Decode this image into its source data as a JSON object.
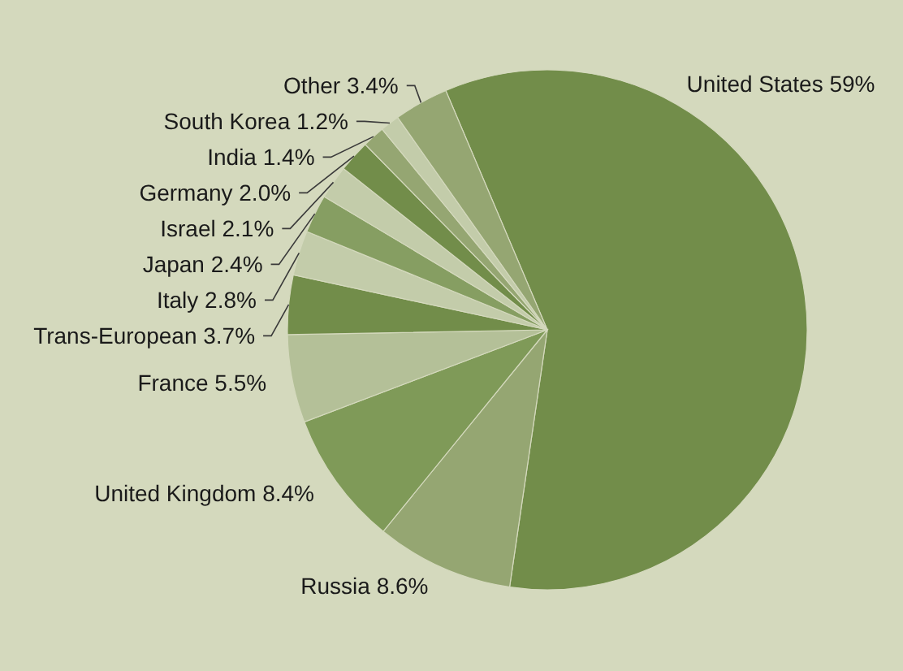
{
  "chart_data": {
    "type": "pie",
    "categories": [
      "United States",
      "Russia",
      "United Kingdom",
      "France",
      "Trans-European",
      "Italy",
      "Japan",
      "Israel",
      "Germany",
      "India",
      "South Korea",
      "Other"
    ],
    "values": [
      59,
      8.6,
      8.4,
      5.5,
      3.7,
      2.8,
      2.4,
      2.1,
      2.0,
      1.4,
      1.2,
      3.4
    ],
    "value_labels": [
      "59%",
      "8.6%",
      "8.4%",
      "5.5%",
      "3.7%",
      "2.8%",
      "2.4%",
      "2.1%",
      "2.0%",
      "1.4%",
      "1.2%",
      "3.4%"
    ],
    "colors": [
      "#728d4a",
      "#95a672",
      "#7f9a58",
      "#b4c098",
      "#728d4a",
      "#c3ccaa",
      "#869e62",
      "#c3ccaa",
      "#728d4a",
      "#95a672",
      "#c3ccaa",
      "#95a672"
    ]
  }
}
